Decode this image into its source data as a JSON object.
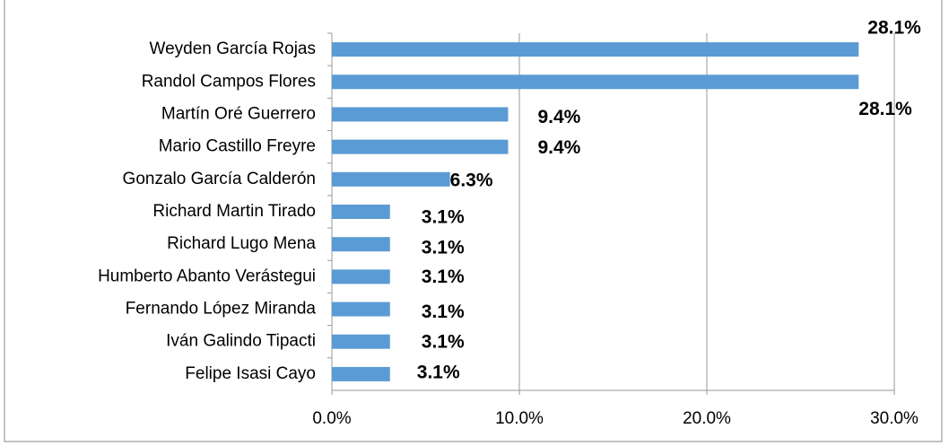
{
  "chart_data": {
    "type": "barh",
    "categories": [
      "Weyden García Rojas",
      "Randol Campos Flores",
      "Martín Oré Guerrero",
      "Mario Castillo Freyre",
      "Gonzalo García Calderón",
      "Richard Martin Tirado",
      "Richard Lugo Mena",
      "Humberto Abanto Verástegui",
      "Fernando López Miranda",
      "Iván Galindo Tipacti",
      "Felipe Isasi Cayo"
    ],
    "values": [
      28.1,
      28.1,
      9.4,
      9.4,
      6.3,
      3.1,
      3.1,
      3.1,
      3.1,
      3.1,
      3.1
    ],
    "value_labels": [
      "28.1%",
      "28.1%",
      "9.4%",
      "9.4%",
      "6.3%",
      "3.1%",
      "3.1%",
      "3.1%",
      "3.1%",
      "3.1%",
      "3.1%"
    ],
    "color": "#5b9bd5",
    "xlim": [
      0,
      30
    ],
    "xticks": [
      {
        "value": 0,
        "label": "0.0%"
      },
      {
        "value": 10,
        "label": "10.0%"
      },
      {
        "value": 20,
        "label": "20.0%"
      },
      {
        "value": 30,
        "label": "30.0%"
      }
    ],
    "grid": true
  }
}
